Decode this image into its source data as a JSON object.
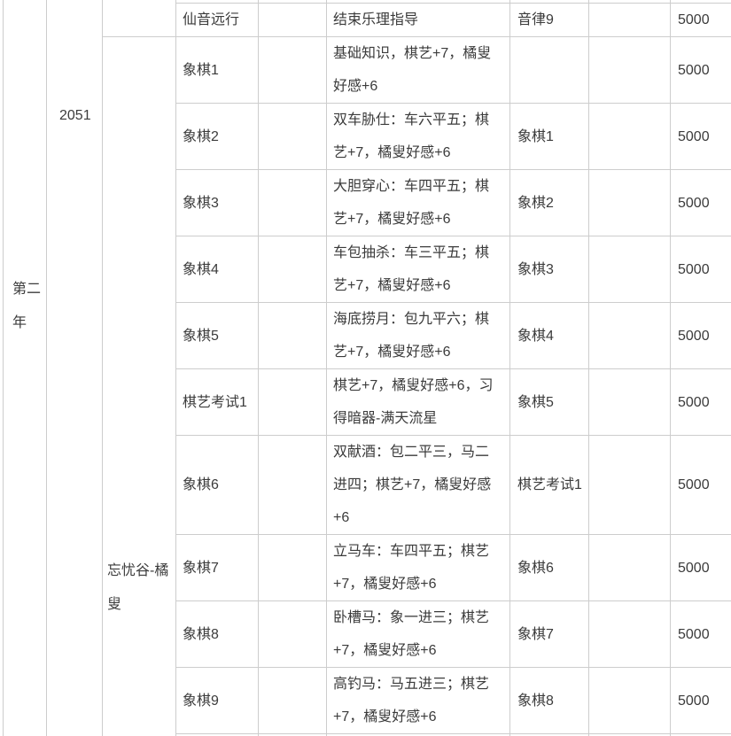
{
  "colors": {
    "border": "#cdcdcd",
    "text": "#3b3b3b",
    "background": "#ffffff"
  },
  "page": {
    "year_group": "第二年",
    "year": "2051",
    "npc_group": "忘忧谷-橘叟",
    "rows": [
      {
        "task": "仙音远行",
        "desc": "结束乐理指导",
        "prereq": "音律9",
        "reward": "5000"
      },
      {
        "task": "象棋1",
        "desc": "基础知识，棋艺+7，橘叟好感+6",
        "prereq": "",
        "reward": "5000"
      },
      {
        "task": "象棋2",
        "desc": "双车胁仕：车六平五；棋艺+7，橘叟好感+6",
        "prereq": "象棋1",
        "reward": "5000"
      },
      {
        "task": "象棋3",
        "desc": "大胆穿心：车四平五；棋艺+7，橘叟好感+6",
        "prereq": "象棋2",
        "reward": "5000"
      },
      {
        "task": "象棋4",
        "desc": "车包抽杀：车三平五；棋艺+7，橘叟好感+6",
        "prereq": "象棋3",
        "reward": "5000"
      },
      {
        "task": "象棋5",
        "desc": "海底捞月：包九平六；棋艺+7，橘叟好感+6",
        "prereq": "象棋4",
        "reward": "5000"
      },
      {
        "task": "棋艺考试1",
        "desc": "棋艺+7，橘叟好感+6，习得暗器-满天流星",
        "prereq": "象棋5",
        "reward": "5000"
      },
      {
        "task": "象棋6",
        "desc": "双献酒：包二平三，马二进四；棋艺+7，橘叟好感+6",
        "prereq": "棋艺考试1",
        "reward": "5000"
      },
      {
        "task": "象棋7",
        "desc": "立马车：车四平五；棋艺+7，橘叟好感+6",
        "prereq": "象棋6",
        "reward": "5000"
      },
      {
        "task": "象棋8",
        "desc": "卧槽马：象一进三；棋艺+7，橘叟好感+6",
        "prereq": "象棋7",
        "reward": "5000"
      },
      {
        "task": "象棋9",
        "desc": "高钓马：马五进三；棋艺+7，橘叟好感+6",
        "prereq": "象棋8",
        "reward": "5000"
      }
    ]
  }
}
